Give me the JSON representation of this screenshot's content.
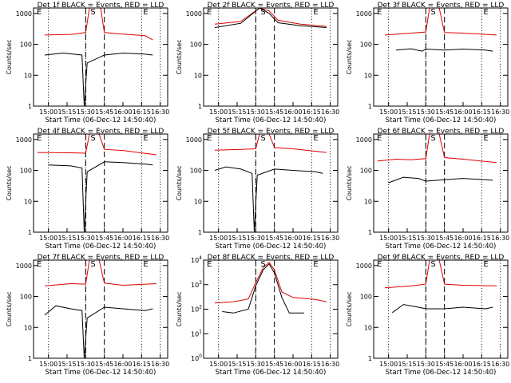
{
  "colors": {
    "events": "#000000",
    "lld": "#e00000",
    "axis": "#000000"
  },
  "chart_data": [
    {
      "type": "line",
      "title": "Det 1f BLACK = Events, RED = LLD",
      "ylabel": "Counts/sec",
      "xlabel": "Start Time (06-Dec-12 14:50:40)",
      "yscale": "log",
      "ylim": [
        1,
        1500
      ],
      "x_ticks": [
        "15:00",
        "15:15",
        "15:30",
        "15:45",
        "16:00",
        "16:15",
        "16:30"
      ],
      "y_ticks": [
        "1",
        "10",
        "100",
        "1000"
      ],
      "markers": [
        "E",
        "S",
        "E"
      ],
      "dotted_lines": [
        "15:00",
        "15:30",
        "16:15",
        "16:30"
      ],
      "dashed_lines": [
        "15:30",
        "15:45"
      ],
      "series": [
        {
          "values": [
            [
              14.95,
              200
            ],
            [
              15.3,
              210
            ],
            [
              15.5,
              240
            ],
            [
              15.55,
              1500
            ],
            [
              15.7,
              1500
            ],
            [
              15.75,
              240
            ],
            [
              16.0,
              215
            ],
            [
              16.3,
              190
            ],
            [
              16.4,
              140
            ]
          ]
        },
        {
          "values": [
            [
              14.95,
              45
            ],
            [
              15.2,
              52
            ],
            [
              15.45,
              45
            ],
            [
              15.48,
              1
            ],
            [
              15.52,
              25
            ],
            [
              15.75,
              45
            ],
            [
              16.0,
              52
            ],
            [
              16.3,
              48
            ],
            [
              16.4,
              45
            ]
          ]
        }
      ]
    },
    {
      "type": "line",
      "title": "Det 2f BLACK = Events, RED = LLD",
      "ylabel": "Counts/sec",
      "xlabel": "Start Time (06-Dec-12 14:50:40)",
      "yscale": "log",
      "ylim": [
        1,
        1500
      ],
      "x_ticks": [
        "15:00",
        "15:15",
        "15:30",
        "15:45",
        "16:00",
        "16:15",
        "16:30"
      ],
      "y_ticks": [
        "1",
        "10",
        "100",
        "1000"
      ],
      "markers": [
        "E",
        "S",
        "E"
      ],
      "dotted_lines": [
        "15:00",
        "15:30",
        "16:15",
        "16:30"
      ],
      "dashed_lines": [
        "15:30",
        "15:45"
      ],
      "series": [
        {
          "values": [
            [
              14.95,
              450
            ],
            [
              15.3,
              550
            ],
            [
              15.55,
              1500
            ],
            [
              15.68,
              1200
            ],
            [
              15.8,
              600
            ],
            [
              16.1,
              450
            ],
            [
              16.45,
              380
            ]
          ]
        },
        {
          "values": [
            [
              14.95,
              350
            ],
            [
              15.3,
              480
            ],
            [
              15.55,
              1500
            ],
            [
              15.68,
              1000
            ],
            [
              15.8,
              500
            ],
            [
              16.1,
              400
            ],
            [
              16.45,
              350
            ]
          ]
        }
      ]
    },
    {
      "type": "line",
      "title": "Det 3f BLACK = Events, RED = LLD",
      "ylabel": "Counts/sec",
      "xlabel": "Start Time (06-Dec-12 14:50:40)",
      "yscale": "log",
      "ylim": [
        1,
        1500
      ],
      "x_ticks": [
        "15:00",
        "15:15",
        "15:30",
        "15:45",
        "16:00",
        "16:15",
        "16:30"
      ],
      "y_ticks": [
        "1",
        "10",
        "100",
        "1000"
      ],
      "markers": [
        "E",
        "S",
        "E"
      ],
      "dotted_lines": [
        "15:00",
        "15:30",
        "16:15",
        "16:30"
      ],
      "dashed_lines": [
        "15:30",
        "15:45"
      ],
      "series": [
        {
          "values": [
            [
              14.95,
              200
            ],
            [
              15.3,
              230
            ],
            [
              15.5,
              250
            ],
            [
              15.55,
              1500
            ],
            [
              15.68,
              1500
            ],
            [
              15.75,
              240
            ],
            [
              16.0,
              230
            ],
            [
              16.45,
              200
            ]
          ]
        },
        {
          "values": [
            [
              15.1,
              65
            ],
            [
              15.3,
              72
            ],
            [
              15.45,
              60
            ],
            [
              15.5,
              70
            ],
            [
              15.75,
              65
            ],
            [
              16.0,
              70
            ],
            [
              16.3,
              65
            ],
            [
              16.4,
              60
            ]
          ]
        }
      ]
    },
    {
      "type": "line",
      "title": "Det 4f BLACK = Events, RED = LLD",
      "ylabel": "Counts/sec",
      "xlabel": "Start Time (06-Dec-12 14:50:40)",
      "yscale": "log",
      "ylim": [
        1,
        1500
      ],
      "x_ticks": [
        "15:00",
        "15:15",
        "15:30",
        "15:45",
        "16:00",
        "16:15",
        "16:30"
      ],
      "y_ticks": [
        "1",
        "10",
        "100",
        "1000"
      ],
      "markers": [
        "E",
        "S",
        "E"
      ],
      "dotted_lines": [
        "15:00",
        "15:30",
        "16:15",
        "16:30"
      ],
      "dashed_lines": [
        "15:30",
        "15:45"
      ],
      "series": [
        {
          "values": [
            [
              14.85,
              380
            ],
            [
              15.3,
              370
            ],
            [
              15.5,
              360
            ],
            [
              15.55,
              1500
            ],
            [
              15.68,
              1500
            ],
            [
              15.75,
              480
            ],
            [
              16.0,
              440
            ],
            [
              16.45,
              320
            ]
          ]
        },
        {
          "values": [
            [
              15.0,
              150
            ],
            [
              15.3,
              140
            ],
            [
              15.45,
              120
            ],
            [
              15.48,
              1
            ],
            [
              15.52,
              90
            ],
            [
              15.75,
              190
            ],
            [
              16.0,
              180
            ],
            [
              16.3,
              160
            ],
            [
              16.4,
              150
            ]
          ]
        }
      ]
    },
    {
      "type": "line",
      "title": "Det 5f BLACK = Events, RED = LLD",
      "ylabel": "Counts/sec",
      "xlabel": "Start Time (06-Dec-12 14:50:40)",
      "yscale": "log",
      "ylim": [
        1,
        1500
      ],
      "x_ticks": [
        "15:00",
        "15:15",
        "15:30",
        "15:45",
        "16:00",
        "16:15",
        "16:30"
      ],
      "y_ticks": [
        "1",
        "10",
        "100",
        "1000"
      ],
      "markers": [
        "E",
        "S",
        "E"
      ],
      "dotted_lines": [
        "15:00",
        "15:30",
        "16:15",
        "16:30"
      ],
      "dashed_lines": [
        "15:30",
        "15:45"
      ],
      "series": [
        {
          "values": [
            [
              14.95,
              450
            ],
            [
              15.3,
              480
            ],
            [
              15.5,
              500
            ],
            [
              15.55,
              1500
            ],
            [
              15.68,
              1500
            ],
            [
              15.75,
              550
            ],
            [
              16.0,
              500
            ],
            [
              16.45,
              380
            ]
          ]
        },
        {
          "values": [
            [
              14.95,
              100
            ],
            [
              15.1,
              130
            ],
            [
              15.3,
              110
            ],
            [
              15.45,
              80
            ],
            [
              15.48,
              1
            ],
            [
              15.52,
              70
            ],
            [
              15.75,
              110
            ],
            [
              16.0,
              100
            ],
            [
              16.3,
              90
            ],
            [
              16.4,
              80
            ]
          ]
        }
      ]
    },
    {
      "type": "line",
      "title": "Det 6f BLACK = Events, RED = LLD",
      "ylabel": "Counts/sec",
      "xlabel": "Start Time (06-Dec-12 14:50:40)",
      "yscale": "log",
      "ylim": [
        1,
        1500
      ],
      "x_ticks": [
        "15:00",
        "15:15",
        "15:30",
        "15:45",
        "16:00",
        "16:15",
        "16:30"
      ],
      "y_ticks": [
        "1",
        "10",
        "100",
        "1000"
      ],
      "markers": [
        "E",
        "S",
        "E"
      ],
      "dotted_lines": [
        "15:00",
        "15:30",
        "16:15",
        "16:30"
      ],
      "dashed_lines": [
        "15:30",
        "15:45"
      ],
      "series": [
        {
          "values": [
            [
              14.85,
              200
            ],
            [
              15.1,
              230
            ],
            [
              15.3,
              220
            ],
            [
              15.5,
              240
            ],
            [
              15.55,
              1500
            ],
            [
              15.68,
              1500
            ],
            [
              15.75,
              260
            ],
            [
              16.0,
              230
            ],
            [
              16.45,
              180
            ]
          ]
        },
        {
          "values": [
            [
              15.0,
              40
            ],
            [
              15.2,
              60
            ],
            [
              15.4,
              55
            ],
            [
              15.5,
              45
            ],
            [
              15.75,
              50
            ],
            [
              16.0,
              55
            ],
            [
              16.3,
              50
            ],
            [
              16.4,
              48
            ]
          ]
        }
      ]
    },
    {
      "type": "line",
      "title": "Det 7f BLACK = Events, RED = LLD",
      "ylabel": "Counts/sec",
      "xlabel": "Start Time (06-Dec-12 14:50:40)",
      "yscale": "log",
      "ylim": [
        1,
        1500
      ],
      "x_ticks": [
        "15:00",
        "15:15",
        "15:30",
        "15:45",
        "16:00",
        "16:15",
        "16:30"
      ],
      "y_ticks": [
        "1",
        "10",
        "100",
        "1000"
      ],
      "markers": [
        "E",
        "S",
        "E"
      ],
      "dotted_lines": [
        "15:00",
        "15:30",
        "16:15",
        "16:30"
      ],
      "dashed_lines": [
        "15:30",
        "15:45"
      ],
      "series": [
        {
          "values": [
            [
              14.95,
              220
            ],
            [
              15.3,
              260
            ],
            [
              15.5,
              250
            ],
            [
              15.55,
              1500
            ],
            [
              15.68,
              1500
            ],
            [
              15.75,
              270
            ],
            [
              16.0,
              230
            ],
            [
              16.45,
              260
            ]
          ]
        },
        {
          "values": [
            [
              14.95,
              25
            ],
            [
              15.1,
              50
            ],
            [
              15.3,
              40
            ],
            [
              15.45,
              35
            ],
            [
              15.48,
              1
            ],
            [
              15.52,
              20
            ],
            [
              15.75,
              45
            ],
            [
              16.0,
              40
            ],
            [
              16.3,
              35
            ],
            [
              16.4,
              40
            ]
          ]
        }
      ]
    },
    {
      "type": "line",
      "title": "Det 8f BLACK = Events, RED = LLD",
      "ylabel": "Counts/sec",
      "xlabel": "Start Time (06-Dec-12 14:50:40)",
      "yscale": "log",
      "ylim": [
        1,
        10000
      ],
      "x_ticks": [
        "15:00",
        "15:15",
        "15:30",
        "15:45",
        "16:00",
        "16:15",
        "16:30"
      ],
      "y_ticks": [
        "10^0",
        "10^1",
        "10^2",
        "10^3",
        "10^4"
      ],
      "markers": [
        "E",
        "S",
        "E"
      ],
      "dotted_lines": [
        "15:00",
        "15:30",
        "16:15",
        "16:30"
      ],
      "dashed_lines": [
        "15:30",
        "15:45"
      ],
      "series": [
        {
          "values": [
            [
              14.95,
              180
            ],
            [
              15.2,
              200
            ],
            [
              15.4,
              260
            ],
            [
              15.5,
              1200
            ],
            [
              15.6,
              5000
            ],
            [
              15.68,
              8000
            ],
            [
              15.75,
              4000
            ],
            [
              15.85,
              500
            ],
            [
              16.0,
              300
            ],
            [
              16.3,
              250
            ],
            [
              16.45,
              200
            ]
          ]
        },
        {
          "values": [
            [
              15.05,
              80
            ],
            [
              15.2,
              70
            ],
            [
              15.4,
              100
            ],
            [
              15.5,
              900
            ],
            [
              15.6,
              4000
            ],
            [
              15.68,
              7000
            ],
            [
              15.75,
              3000
            ],
            [
              15.85,
              300
            ],
            [
              15.95,
              70
            ],
            [
              16.15,
              70
            ]
          ]
        }
      ]
    },
    {
      "type": "line",
      "title": "Det 9f BLACK = Events, RED = LLD",
      "ylabel": "Counts/sec",
      "xlabel": "Start Time (06-Dec-12 14:50:40)",
      "yscale": "log",
      "ylim": [
        1,
        1500
      ],
      "x_ticks": [
        "15:00",
        "15:15",
        "15:30",
        "15:45",
        "16:00",
        "16:15",
        "16:30"
      ],
      "y_ticks": [
        "1",
        "10",
        "100",
        "1000"
      ],
      "markers": [
        "E",
        "S",
        "E"
      ],
      "dotted_lines": [
        "15:00",
        "15:30",
        "16:15",
        "16:30"
      ],
      "dashed_lines": [
        "15:30",
        "15:45"
      ],
      "series": [
        {
          "values": [
            [
              14.95,
              190
            ],
            [
              15.3,
              220
            ],
            [
              15.5,
              250
            ],
            [
              15.55,
              1500
            ],
            [
              15.68,
              1500
            ],
            [
              15.75,
              250
            ],
            [
              16.0,
              230
            ],
            [
              16.45,
              220
            ]
          ]
        },
        {
          "values": [
            [
              15.05,
              30
            ],
            [
              15.2,
              55
            ],
            [
              15.4,
              45
            ],
            [
              15.5,
              40
            ],
            [
              15.75,
              40
            ],
            [
              16.0,
              45
            ],
            [
              16.3,
              40
            ],
            [
              16.4,
              45
            ]
          ]
        }
      ]
    }
  ]
}
